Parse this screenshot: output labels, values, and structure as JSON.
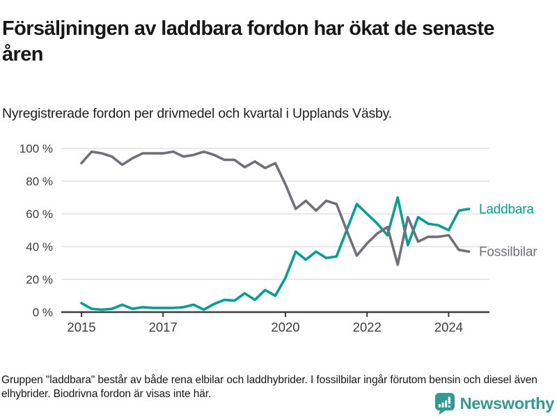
{
  "header": {
    "title": "Försäljningen av laddbara fordon har ökat de senaste åren",
    "subtitle": "Nyregistrerade fordon per drivmedel och kvartal i Upplands Väsby."
  },
  "chart_data": {
    "type": "line",
    "title": "",
    "xlabel": "",
    "ylabel": "",
    "x_unit": "quarter",
    "x_start": 2015.0,
    "x_step": 0.25,
    "x_end": 2024.5,
    "ylim": [
      0,
      100
    ],
    "yticks": [
      0,
      20,
      40,
      60,
      80,
      100
    ],
    "ytick_suffix": " %",
    "xticks": [
      2015,
      2017,
      2020,
      2022,
      2024
    ],
    "grid": true,
    "legend_position": "right-of-line-end",
    "series": [
      {
        "name": "Laddbara",
        "color": "#00a192",
        "values": [
          5.5,
          2,
          1.5,
          2,
          4.5,
          2,
          3,
          2.5,
          2.5,
          2.5,
          3,
          4.5,
          1.5,
          5,
          7.5,
          7,
          11.5,
          7.5,
          13.5,
          10,
          21,
          37,
          32,
          37,
          33,
          34,
          50,
          66,
          60,
          54,
          47,
          70,
          41,
          58,
          54,
          53,
          50,
          62,
          63
        ]
      },
      {
        "name": "Fossilbilar",
        "color": "#70707a",
        "values": [
          91,
          98,
          97,
          95,
          90,
          94,
          97,
          97,
          97,
          98,
          95,
          96,
          98,
          96,
          93,
          93,
          88.5,
          92,
          88,
          91,
          78,
          63,
          68,
          62,
          68,
          66,
          50,
          34.5,
          42,
          48,
          52,
          29,
          58,
          43,
          46,
          46,
          47,
          38,
          37
        ]
      }
    ],
    "colors": {
      "gridline": "#d9d9d9",
      "axis": "#3c3c3c",
      "tick_label": "#3d3d3d"
    }
  },
  "footer": {
    "note": "Gruppen \"laddbara\" består av både rena elbilar och laddhybrider. I fossilbilar ingår förutom bensin och diesel även elhybrider. Biodrivna fordon är visas inte här.",
    "brand": "Newsworthy",
    "brand_color": "#2f9c91"
  }
}
